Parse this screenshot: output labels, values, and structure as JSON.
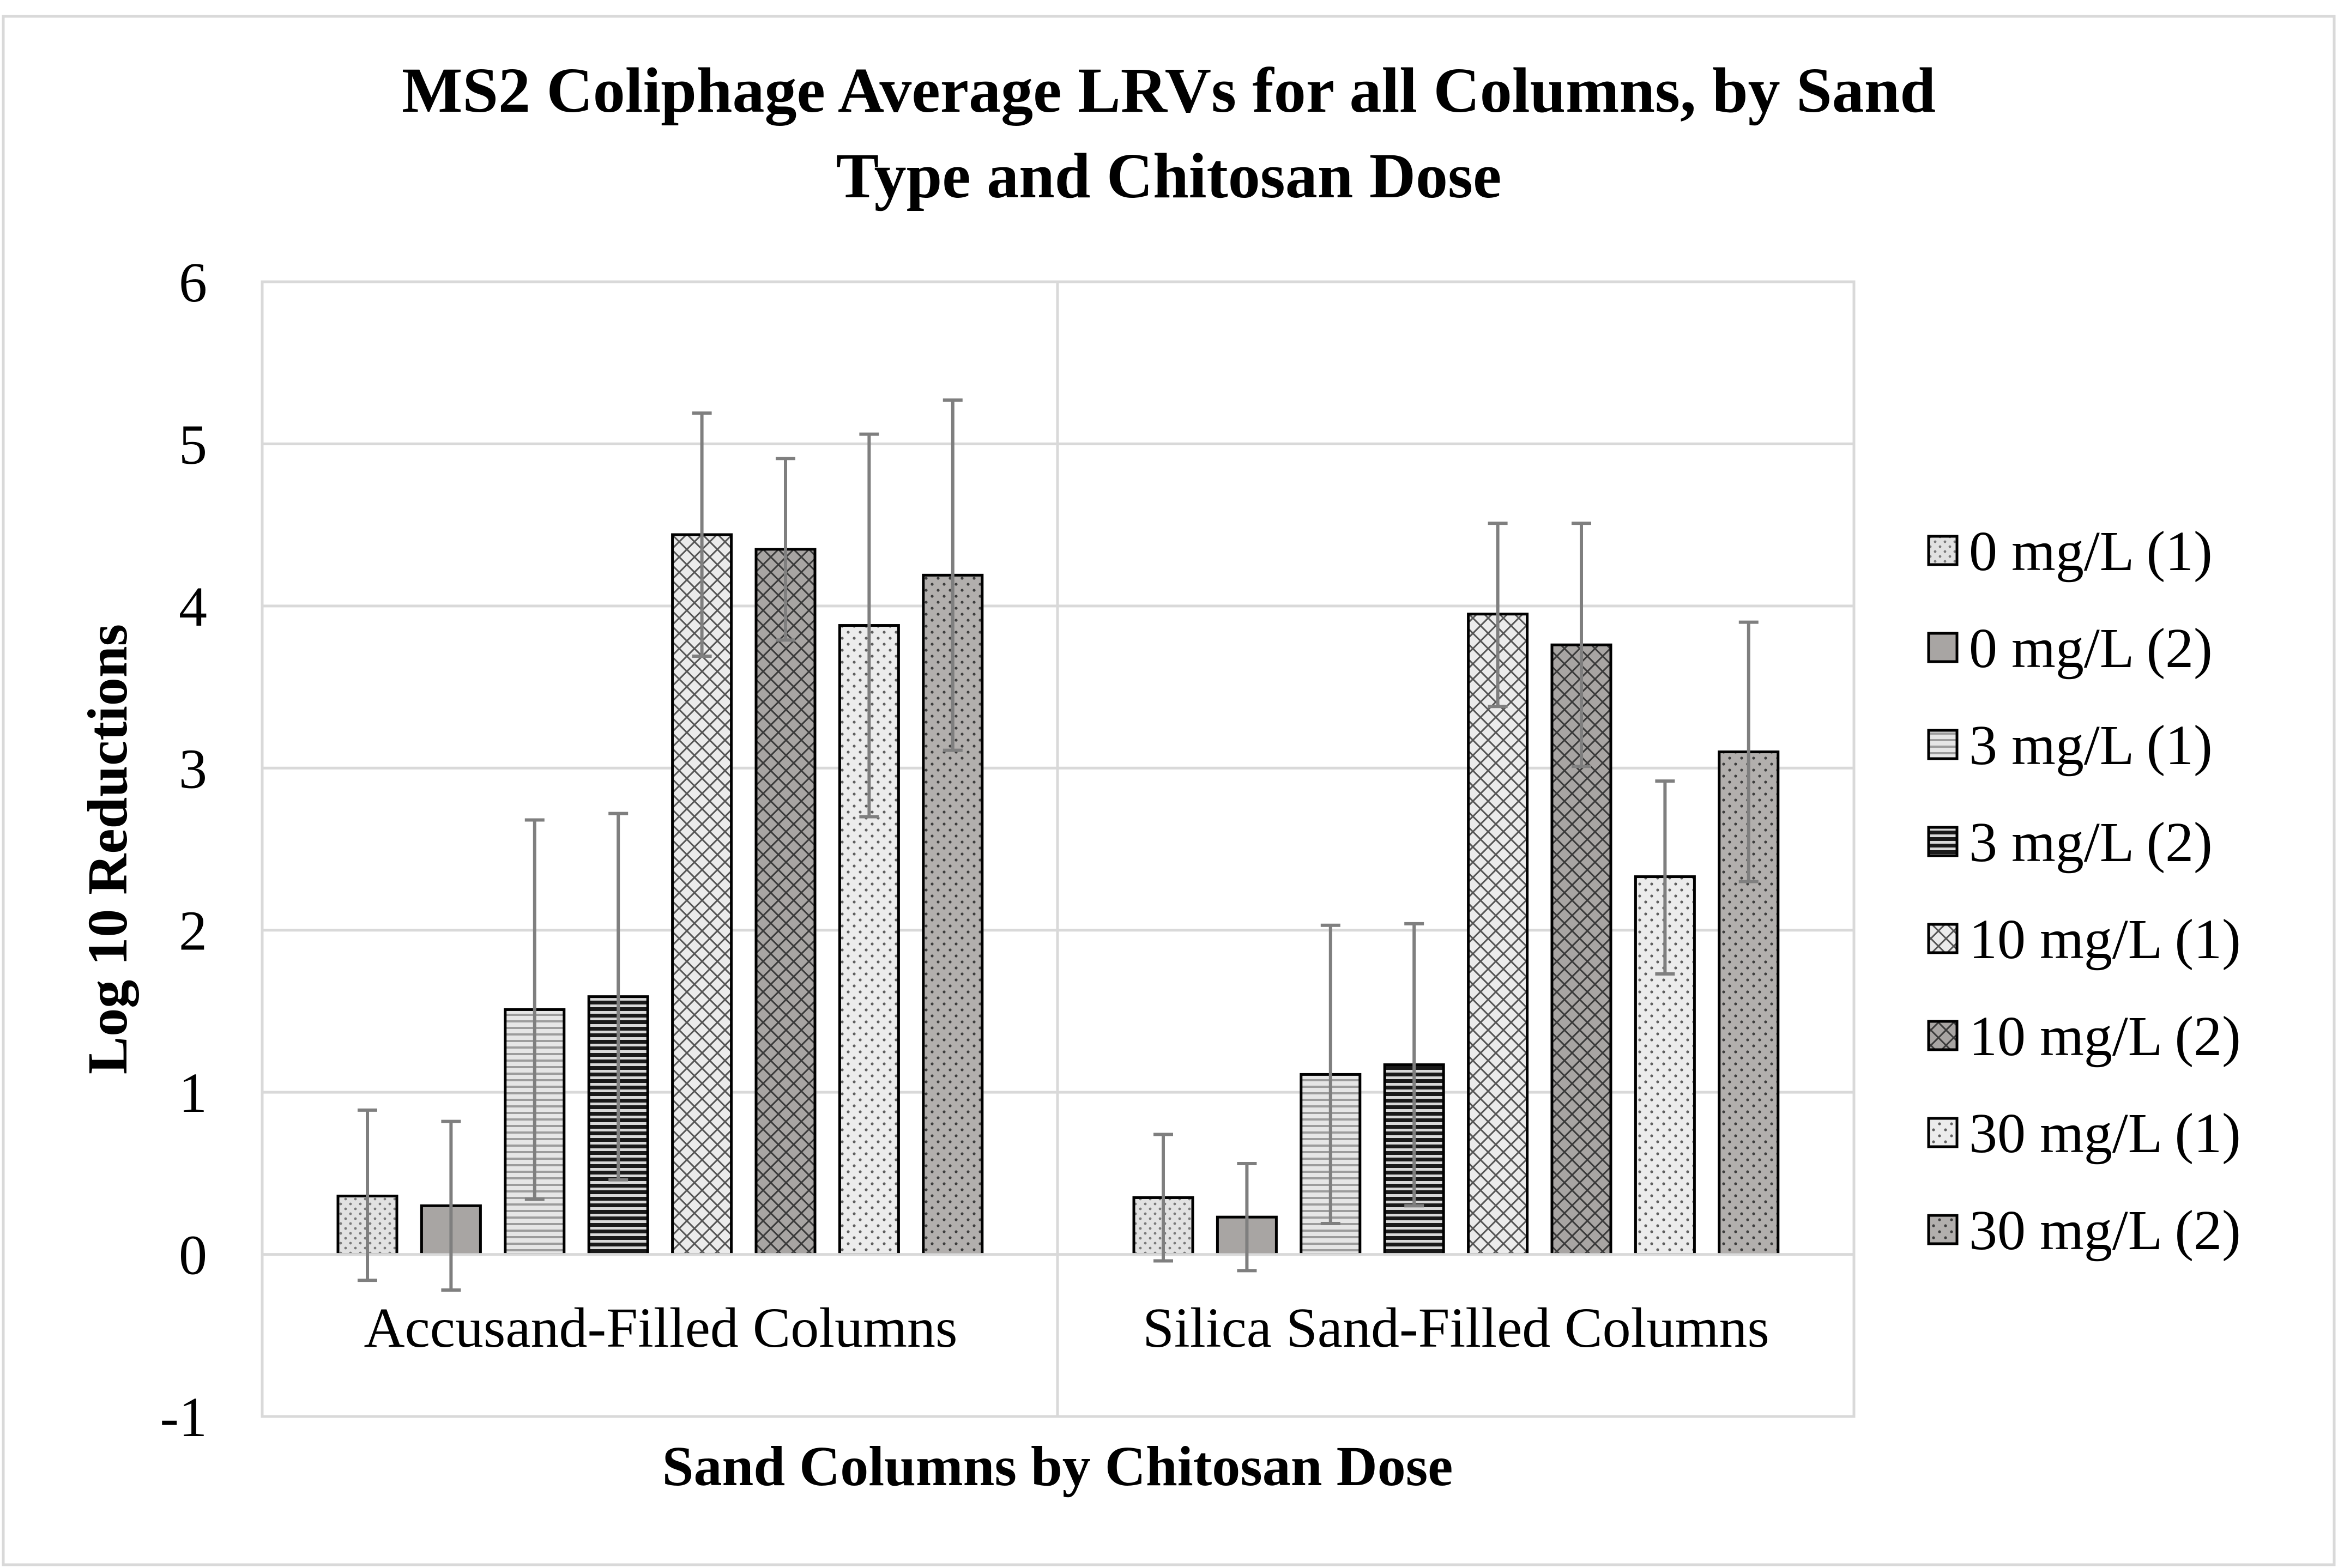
{
  "chart_data": {
    "type": "bar",
    "title_lines": [
      "MS2 Coliphage Average LRVs for all Columns, by Sand",
      "Type and Chitosan Dose"
    ],
    "xlabel": "Sand Columns by Chitosan Dose",
    "ylabel": "Log 10 Reductions",
    "ylim": [
      -1,
      6
    ],
    "yticks": [
      "6",
      "5",
      "4",
      "3",
      "2",
      "1",
      "0",
      "-1"
    ],
    "ytick_values": [
      6,
      5,
      4,
      3,
      2,
      1,
      0,
      -1
    ],
    "grid": true,
    "legend_position": "right",
    "categories": [
      "Accusand-Filled Columns",
      "Silica Sand-Filled Columns"
    ],
    "series": [
      {
        "name": "0 mg/L (1)",
        "values": [
          0.36,
          0.35
        ],
        "error_low": [
          0.52,
          0.39
        ],
        "error_high": [
          0.53,
          0.39
        ],
        "fill": "#e2e2e2",
        "pattern": "small-dots"
      },
      {
        "name": "0 mg/L (2)",
        "values": [
          0.3,
          0.23
        ],
        "error_low": [
          0.52,
          0.33
        ],
        "error_high": [
          0.52,
          0.33
        ],
        "fill": "#a8a5a3",
        "pattern": "solid"
      },
      {
        "name": "3 mg/L (1)",
        "values": [
          1.51,
          1.11
        ],
        "error_low": [
          1.17,
          0.92
        ],
        "error_high": [
          1.17,
          0.92
        ],
        "fill": "#e2e2e2",
        "pattern": "horizontal-lines"
      },
      {
        "name": "3 mg/L (2)",
        "values": [
          1.59,
          1.17
        ],
        "error_low": [
          1.13,
          0.87
        ],
        "error_high": [
          1.13,
          0.87
        ],
        "fill": "#2b2b2b",
        "pattern": "horizontal-lines"
      },
      {
        "name": "10 mg/L (1)",
        "values": [
          4.44,
          3.95
        ],
        "error_low": [
          0.75,
          0.57
        ],
        "error_high": [
          0.75,
          0.56
        ],
        "fill": "#e2e2e2",
        "pattern": "crosshatch"
      },
      {
        "name": "10 mg/L (2)",
        "values": [
          4.35,
          3.76
        ],
        "error_low": [
          0.56,
          0.75
        ],
        "error_high": [
          0.56,
          0.75
        ],
        "fill": "#a8a5a3",
        "pattern": "crosshatch"
      },
      {
        "name": "30 mg/L (1)",
        "values": [
          3.88,
          2.33
        ],
        "error_low": [
          1.18,
          0.6
        ],
        "error_high": [
          1.18,
          0.59
        ],
        "fill": "#e2e2e2",
        "pattern": "dots"
      },
      {
        "name": "30 mg/L (2)",
        "values": [
          4.19,
          3.1
        ],
        "error_low": [
          1.08,
          0.8
        ],
        "error_high": [
          1.08,
          0.8
        ],
        "fill": "#a8a5a3",
        "pattern": "dots"
      }
    ],
    "colors": {
      "gridline": "#d9d9d9",
      "error_bar": "#7f7f7f",
      "bar_outline": "#000000",
      "frame": "#d9d9d9"
    }
  }
}
